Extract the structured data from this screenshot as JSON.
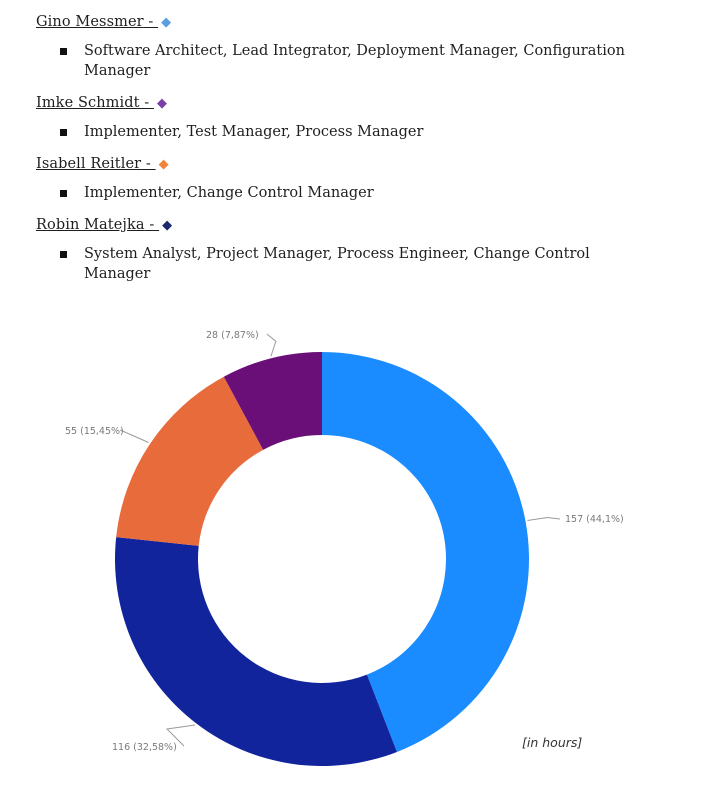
{
  "team": [
    {
      "name": "Gino Messmer",
      "sep": " - ",
      "diamond": "◆",
      "color": "#5a9ee0",
      "roles": "Software Architect, Lead Integrator, Deployment Manager, Configuration Manager"
    },
    {
      "name": "Imke Schmidt",
      "sep": " - ",
      "diamond": "◆",
      "color": "#7a3fa8",
      "roles": "Implementer, Test Manager, Process Manager"
    },
    {
      "name": "Isabell Reitler",
      "sep": " - ",
      "diamond": "◆",
      "color": "#f0843c",
      "roles": "Implementer, Change Control Manager"
    },
    {
      "name": "Robin Matejka",
      "sep": " - ",
      "diamond": "◆",
      "color": "#1a2a6c",
      "roles": "System Analyst, Project Manager, Process Engineer, Change Control Manager"
    }
  ],
  "chart_data": {
    "type": "pie",
    "donut": true,
    "slices": [
      {
        "value": 157,
        "label": "157 (44,1%)",
        "color": "#1a8cff"
      },
      {
        "value": 116,
        "label": "116 (32,58%)",
        "color": "#12249c"
      },
      {
        "value": 55,
        "label": "55 (15,45%)",
        "color": "#e86b3c"
      },
      {
        "value": 28,
        "label": "28 (7,87%)",
        "color": "#6b0f78"
      }
    ],
    "unit_note": "[in hours]"
  }
}
